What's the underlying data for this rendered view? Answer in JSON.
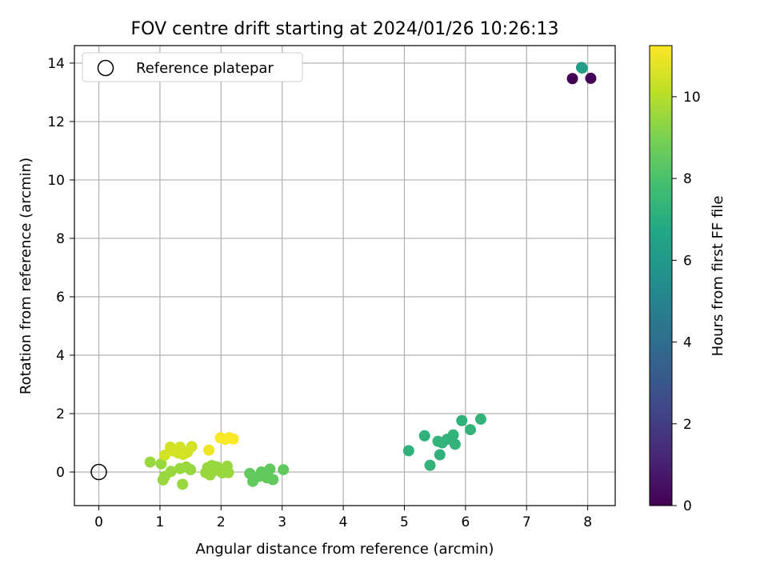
{
  "chart_data": {
    "type": "scatter",
    "title": "FOV centre drift starting at 2024/01/26 10:26:13",
    "xlabel": "Angular distance from reference (arcmin)",
    "ylabel": "Rotation from reference (arcmin)",
    "xlim": [
      -0.4,
      8.45
    ],
    "ylim": [
      -1.15,
      14.6
    ],
    "xticks": [
      0,
      1,
      2,
      3,
      4,
      5,
      6,
      7,
      8
    ],
    "yticks": [
      0,
      2,
      4,
      6,
      8,
      10,
      12,
      14
    ],
    "grid": true,
    "legend": {
      "position": "top-left",
      "entries": [
        "Reference platepar"
      ]
    },
    "reference_point": {
      "x": 0,
      "y": 0,
      "marker": "open-circle"
    },
    "colorbar": {
      "label": "Hours from first FF file",
      "range": [
        0,
        11.25
      ],
      "ticks": [
        0,
        2,
        4,
        6,
        8,
        10
      ],
      "colormap": "viridis"
    },
    "points": [
      {
        "x": 7.75,
        "y": 13.47,
        "c": 0.0
      },
      {
        "x": 8.05,
        "y": 13.48,
        "c": 0.1
      },
      {
        "x": 7.9,
        "y": 13.85,
        "c": 6.0
      },
      {
        "x": 7.91,
        "y": 13.83,
        "c": 6.2
      },
      {
        "x": 5.07,
        "y": 0.73,
        "c": 7.2
      },
      {
        "x": 5.33,
        "y": 1.24,
        "c": 7.2
      },
      {
        "x": 5.42,
        "y": 0.23,
        "c": 7.3
      },
      {
        "x": 5.55,
        "y": 1.05,
        "c": 7.3
      },
      {
        "x": 5.58,
        "y": 0.59,
        "c": 7.2
      },
      {
        "x": 5.62,
        "y": 1.0,
        "c": 7.3
      },
      {
        "x": 5.7,
        "y": 1.12,
        "c": 7.3
      },
      {
        "x": 5.8,
        "y": 1.27,
        "c": 7.3
      },
      {
        "x": 5.83,
        "y": 0.95,
        "c": 7.3
      },
      {
        "x": 5.94,
        "y": 1.76,
        "c": 7.2
      },
      {
        "x": 6.08,
        "y": 1.45,
        "c": 7.3
      },
      {
        "x": 6.25,
        "y": 1.81,
        "c": 7.3
      },
      {
        "x": 2.47,
        "y": -0.05,
        "c": 8.5
      },
      {
        "x": 2.52,
        "y": -0.32,
        "c": 8.5
      },
      {
        "x": 2.62,
        "y": -0.15,
        "c": 8.5
      },
      {
        "x": 2.66,
        "y": 0.0,
        "c": 8.5
      },
      {
        "x": 2.7,
        "y": -0.08,
        "c": 8.5
      },
      {
        "x": 2.75,
        "y": -0.2,
        "c": 8.5
      },
      {
        "x": 2.8,
        "y": 0.1,
        "c": 8.5
      },
      {
        "x": 2.85,
        "y": -0.26,
        "c": 8.5
      },
      {
        "x": 3.02,
        "y": 0.08,
        "c": 8.5
      },
      {
        "x": 0.84,
        "y": 0.34,
        "c": 9.5
      },
      {
        "x": 1.02,
        "y": 0.28,
        "c": 9.5
      },
      {
        "x": 1.05,
        "y": -0.27,
        "c": 9.5
      },
      {
        "x": 1.08,
        "y": -0.15,
        "c": 9.5
      },
      {
        "x": 1.18,
        "y": 0.02,
        "c": 9.5
      },
      {
        "x": 1.33,
        "y": 0.12,
        "c": 9.5
      },
      {
        "x": 1.37,
        "y": -0.42,
        "c": 9.5
      },
      {
        "x": 1.43,
        "y": 0.17,
        "c": 9.5
      },
      {
        "x": 1.5,
        "y": 0.08,
        "c": 9.5
      },
      {
        "x": 1.75,
        "y": -0.02,
        "c": 9.5
      },
      {
        "x": 1.78,
        "y": 0.15,
        "c": 9.5
      },
      {
        "x": 1.82,
        "y": -0.1,
        "c": 9.5
      },
      {
        "x": 1.85,
        "y": 0.22,
        "c": 9.5
      },
      {
        "x": 1.9,
        "y": 0.05,
        "c": 9.5
      },
      {
        "x": 1.93,
        "y": 0.18,
        "c": 9.5
      },
      {
        "x": 1.98,
        "y": 0.1,
        "c": 9.5
      },
      {
        "x": 2.02,
        "y": -0.03,
        "c": 9.5
      },
      {
        "x": 2.08,
        "y": 0.0,
        "c": 9.5
      },
      {
        "x": 2.1,
        "y": 0.2,
        "c": 9.5
      },
      {
        "x": 2.12,
        "y": -0.02,
        "c": 9.5
      },
      {
        "x": 1.08,
        "y": 0.58,
        "c": 10.5
      },
      {
        "x": 1.17,
        "y": 0.85,
        "c": 10.5
      },
      {
        "x": 1.22,
        "y": 0.72,
        "c": 10.5
      },
      {
        "x": 1.3,
        "y": 0.65,
        "c": 10.5
      },
      {
        "x": 1.33,
        "y": 0.85,
        "c": 10.5
      },
      {
        "x": 1.38,
        "y": 0.6,
        "c": 10.5
      },
      {
        "x": 1.45,
        "y": 0.68,
        "c": 10.5
      },
      {
        "x": 1.52,
        "y": 0.87,
        "c": 10.5
      },
      {
        "x": 1.8,
        "y": 0.75,
        "c": 11.0
      },
      {
        "x": 1.99,
        "y": 1.17,
        "c": 11.2
      },
      {
        "x": 2.07,
        "y": 1.12,
        "c": 11.2
      },
      {
        "x": 2.13,
        "y": 1.17,
        "c": 11.2
      },
      {
        "x": 2.2,
        "y": 1.13,
        "c": 11.2
      }
    ]
  }
}
